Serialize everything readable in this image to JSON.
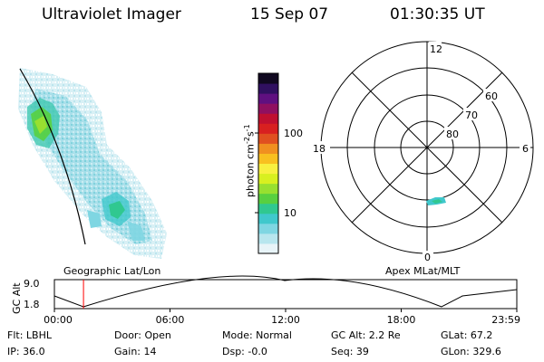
{
  "header": {
    "title": "Ultraviolet Imager",
    "date": "15 Sep 07",
    "time": "01:30:35 UT"
  },
  "colorbar": {
    "label_main": "photon cm",
    "label_exp1": "-2",
    "label_s": "s",
    "label_exp2": "-1",
    "ticks": [
      "100",
      "10"
    ],
    "colors": [
      "#e8f4f8",
      "#b8e6ee",
      "#7fd6e2",
      "#40c8cc",
      "#30c890",
      "#58d040",
      "#98e030",
      "#d8f020",
      "#f8f040",
      "#f8c020",
      "#f09020",
      "#e05020",
      "#d82020",
      "#c01030",
      "#901060",
      "#601080",
      "#301060",
      "#100820"
    ]
  },
  "polar_plot": {
    "mlt_labels": [
      "12",
      "18",
      "6",
      "0"
    ],
    "lat_labels": [
      "60",
      "70",
      "80"
    ]
  },
  "timeline": {
    "left_label": "Geographic Lat/Lon",
    "right_label": "Apex MLat/MLT",
    "axis_label": "GC Alt",
    "y_ticks": [
      "9.0",
      "1.8"
    ],
    "x_ticks": [
      "00:00",
      "06:00",
      "12:00",
      "18:00",
      "23:59"
    ],
    "marker_time_hours": 1.51,
    "marker_color": "#ff0000"
  },
  "info": {
    "row1": [
      "Flt: LBHL",
      "Door: Open",
      "Mode: Normal",
      "GC Alt: 2.2 Re",
      "GLat:  67.2"
    ],
    "row2": [
      "IP: 36.0",
      "Gain: 14",
      "Dsp:   -0.0",
      "Seq: 39",
      "GLon: 329.6"
    ]
  }
}
